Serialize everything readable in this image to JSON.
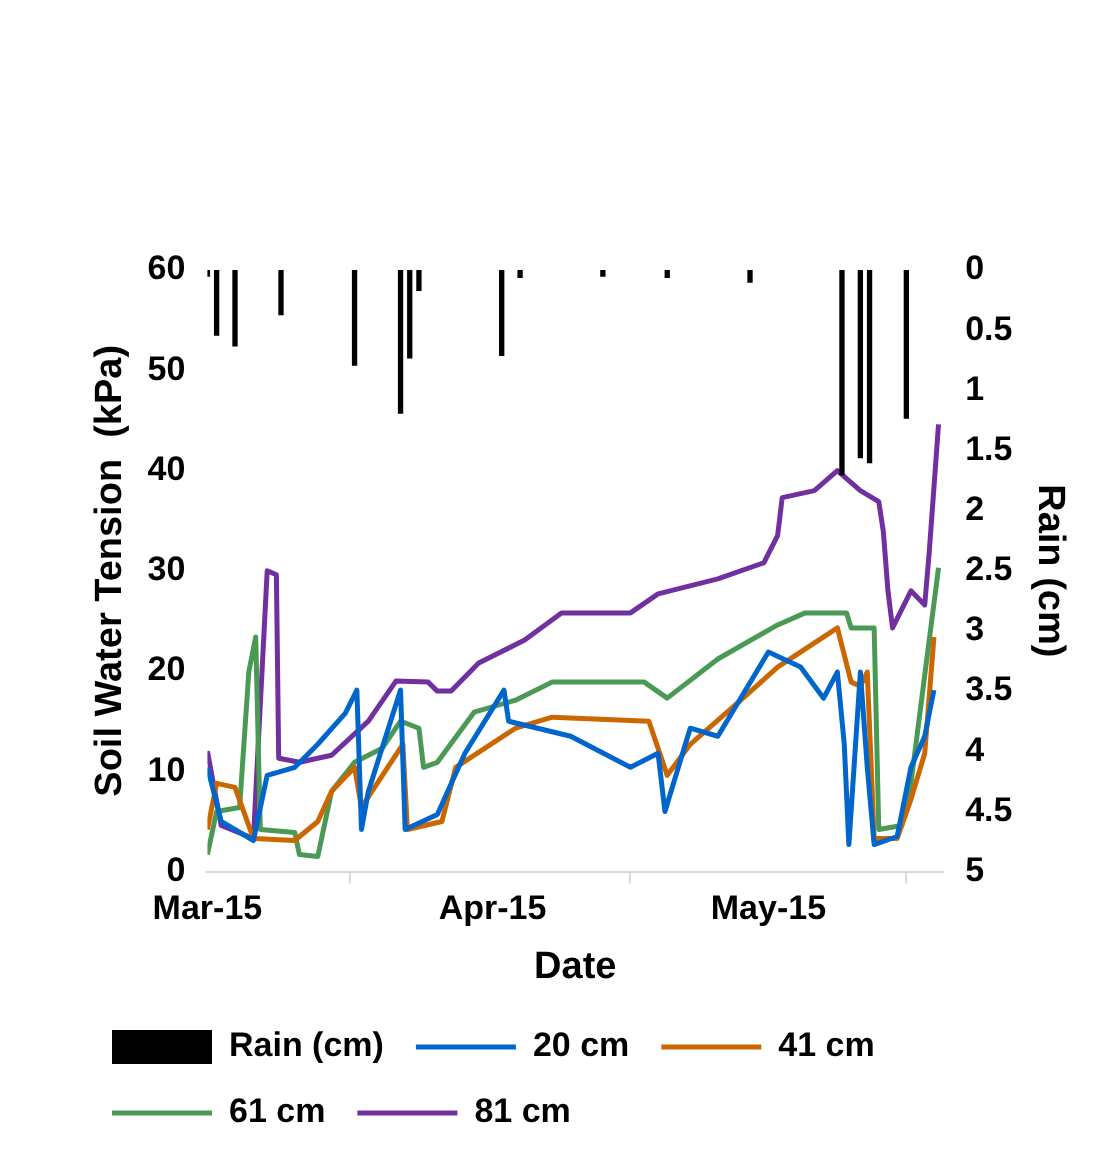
{
  "chart_data": {
    "type": "line",
    "xlabel": "Date",
    "ylabel": "Soil Water Tension  (kPa)",
    "y2label": "Rain (cm)",
    "xlim": [
      "2015-03-01",
      "2015-05-20"
    ],
    "xticks": [
      {
        "value": "2015-03-01",
        "label": "Mar-15"
      },
      {
        "value": "2015-04-01",
        "label": "Apr-15"
      },
      {
        "value": "2015-05-01",
        "label": "May-15"
      }
    ],
    "ylim": [
      0,
      60
    ],
    "yticks": [
      0,
      10,
      20,
      30,
      40,
      50,
      60
    ],
    "y2lim": [
      5,
      0
    ],
    "y2ticks": [
      0,
      0.5,
      1,
      1.5,
      2,
      2.5,
      3,
      3.5,
      4,
      4.5,
      5
    ],
    "grid": false,
    "legend": "bottom",
    "marker": "none",
    "line_style": "solid",
    "series": [
      {
        "name": "Rain (cm)",
        "type": "bar",
        "axis": "y2",
        "color": "#000000",
        "x": [
          "2015-03-01",
          "2015-03-02",
          "2015-03-04",
          "2015-03-09",
          "2015-03-17",
          "2015-03-22",
          "2015-03-23",
          "2015-03-24",
          "2015-04-02",
          "2015-04-04",
          "2015-04-13",
          "2015-04-20",
          "2015-04-29",
          "2015-05-09",
          "2015-05-11",
          "2015-05-12",
          "2015-05-16"
        ],
        "values": [
          0.05,
          0.54,
          0.63,
          0.37,
          0.79,
          1.19,
          0.73,
          0.17,
          0.71,
          0.06,
          0.05,
          0.06,
          0.1,
          1.7,
          1.56,
          1.6,
          1.23
        ]
      },
      {
        "name": "20 cm",
        "color": "#0066cc",
        "x": [
          "2015-03-01",
          "2015-03-02T12:00",
          "2015-03-06",
          "2015-03-07T12:00",
          "2015-03-10T12:00",
          "2015-03-13",
          "2015-03-16",
          "2015-03-17T06:00",
          "2015-03-17T18:00",
          "2015-03-18T12:00",
          "2015-03-22",
          "2015-03-22T12:00",
          "2015-03-26",
          "2015-03-29",
          "2015-04-02T06:00",
          "2015-04-02T18:00",
          "2015-04-09T12:00",
          "2015-04-16",
          "2015-04-19",
          "2015-04-19T18:00",
          "2015-04-22T12:00",
          "2015-04-25T12:00",
          "2015-05-01",
          "2015-05-04T12:00",
          "2015-05-07",
          "2015-05-08T12:00",
          "2015-05-09T06:00",
          "2015-05-09T18:00",
          "2015-05-11",
          "2015-05-11T18:00",
          "2015-05-12T12:00",
          "2015-05-15",
          "2015-05-16T12:00",
          "2015-05-18",
          "2015-05-19"
        ],
        "values": [
          10.4,
          5,
          3.1,
          9.6,
          10.4,
          12.7,
          15.8,
          18.1,
          4.2,
          8,
          18.1,
          4.2,
          5.7,
          11.8,
          18.1,
          15,
          13.5,
          10.4,
          11.8,
          6,
          14.3,
          13.5,
          21.9,
          20.4,
          17.3,
          19.9,
          12.7,
          2.7,
          19.9,
          10.4,
          2.7,
          3.5,
          10.4,
          13.5,
          18.1
        ]
      },
      {
        "name": "41 cm",
        "color": "#cc6600",
        "x": [
          "2015-03-01",
          "2015-03-02",
          "2015-03-04",
          "2015-03-06",
          "2015-03-10T12:00",
          "2015-03-13",
          "2015-03-14T12:00",
          "2015-03-17",
          "2015-03-17T18:00",
          "2015-03-22T06:00",
          "2015-03-22T18:00",
          "2015-03-26T12:00",
          "2015-03-28",
          "2015-04-03T12:00",
          "2015-04-07T12:00",
          "2015-04-18",
          "2015-04-20",
          "2015-04-22T12:00",
          "2015-04-28",
          "2015-05-02",
          "2015-05-08T12:00",
          "2015-05-10",
          "2015-05-11",
          "2015-05-11T18:00",
          "2015-05-12T12:00",
          "2015-05-15",
          "2015-05-16T12:00",
          "2015-05-18",
          "2015-05-19"
        ],
        "values": [
          4.2,
          8.8,
          8.4,
          3.3,
          3.1,
          5,
          8,
          10.4,
          6.4,
          12.7,
          4.2,
          5,
          10.4,
          14.3,
          15.4,
          15,
          9.6,
          12.7,
          17.1,
          20.4,
          24.3,
          18.9,
          18.5,
          19.9,
          3.3,
          3.3,
          7.2,
          11.8,
          23.4
        ]
      },
      {
        "name": "61 cm",
        "color": "#4a9a55",
        "x": [
          "2015-03-01",
          "2015-03-02",
          "2015-03-04T12:00",
          "2015-03-05T12:00",
          "2015-03-06T06:00",
          "2015-03-06T18:00",
          "2015-03-10T12:00",
          "2015-03-11",
          "2015-03-13",
          "2015-03-14T12:00",
          "2015-03-17",
          "2015-03-20",
          "2015-03-22",
          "2015-03-24",
          "2015-03-24T12:00",
          "2015-03-26",
          "2015-03-30",
          "2015-04-03T12:00",
          "2015-04-07T12:00",
          "2015-04-17T12:00",
          "2015-04-20",
          "2015-04-25T12:00",
          "2015-05-02",
          "2015-05-05",
          "2015-05-09T12:00",
          "2015-05-10",
          "2015-05-12T12:00",
          "2015-05-13",
          "2015-05-15T12:00",
          "2015-05-16T12:00",
          "2015-05-18",
          "2015-05-19T12:00"
        ],
        "values": [
          1.7,
          6,
          6.4,
          19.9,
          23.4,
          4.2,
          3.9,
          1.7,
          1.5,
          8,
          10.9,
          12.3,
          15,
          14.3,
          10.4,
          10.9,
          15.9,
          17.1,
          18.9,
          18.9,
          17.3,
          21.2,
          24.6,
          25.8,
          25.8,
          24.3,
          24.3,
          4.2,
          4.6,
          8.8,
          19.6,
          30.3
        ]
      },
      {
        "name": "81 cm",
        "color": "#7030a0",
        "x": [
          "2015-03-01",
          "2015-03-02T12:00",
          "2015-03-06",
          "2015-03-07T12:00",
          "2015-03-08T12:00",
          "2015-03-08T18:00",
          "2015-03-11",
          "2015-03-14T12:00",
          "2015-03-18T12:00",
          "2015-03-21T12:00",
          "2015-03-25",
          "2015-03-26",
          "2015-03-27T12:00",
          "2015-03-30T12:00",
          "2015-04-04T12:00",
          "2015-04-08T12:00",
          "2015-04-16",
          "2015-04-19",
          "2015-04-25T12:00",
          "2015-04-30T12:00",
          "2015-05-02",
          "2015-05-02T12:00",
          "2015-05-06",
          "2015-05-08T12:00",
          "2015-05-11",
          "2015-05-13",
          "2015-05-13T12:00",
          "2015-05-14",
          "2015-05-14T12:00",
          "2015-05-16T12:00",
          "2015-05-18",
          "2015-05-18T12:00",
          "2015-05-19T12:00"
        ],
        "values": [
          12,
          4.6,
          3.3,
          30,
          29.6,
          11.3,
          10.9,
          11.6,
          15,
          19,
          18.9,
          18,
          18,
          20.8,
          23.1,
          25.8,
          25.8,
          27.7,
          29.2,
          30.8,
          33.5,
          37.3,
          38,
          40,
          38,
          36.9,
          33.9,
          28,
          24.3,
          28,
          26.6,
          32,
          44.6
        ]
      }
    ]
  }
}
